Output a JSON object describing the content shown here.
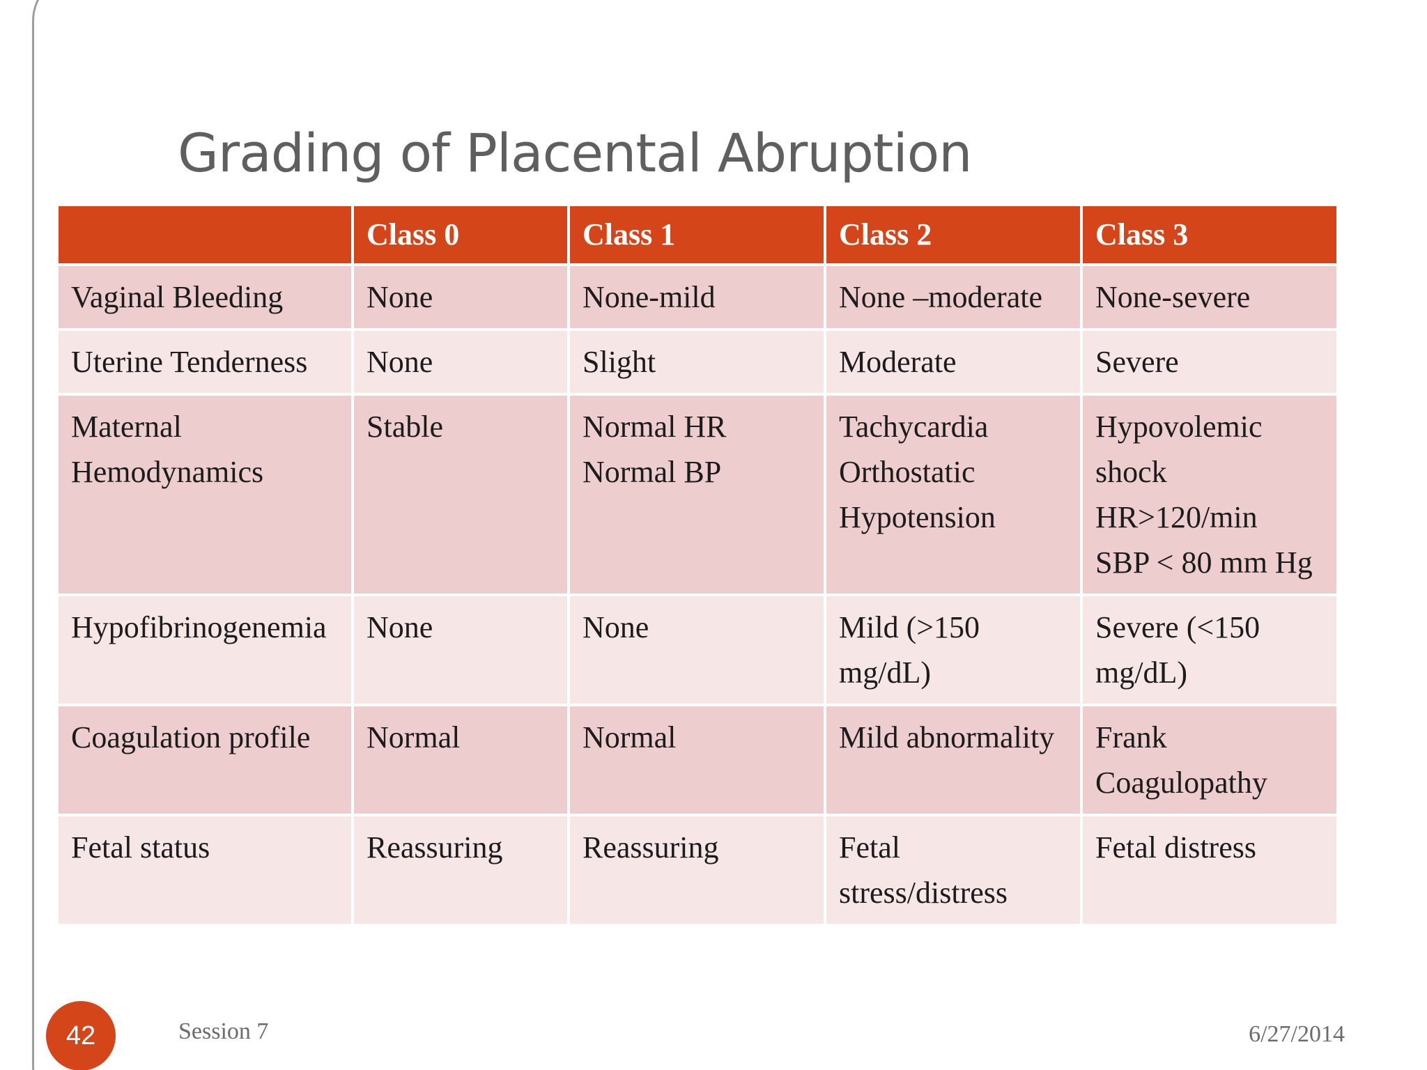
{
  "slide": {
    "title": "Grading of Placental Abruption",
    "page_number": "42",
    "footer_left": "Session 7",
    "footer_right": "6/27/2014",
    "accent_color": "#d4461a"
  },
  "table": {
    "headers": [
      "",
      "Class 0",
      "Class 1",
      "Class 2",
      "Class 3"
    ],
    "rows": [
      {
        "label": [
          "Vaginal Bleeding"
        ],
        "cells": [
          [
            "None"
          ],
          [
            "None-mild"
          ],
          [
            "None –moderate"
          ],
          [
            "None-severe"
          ]
        ]
      },
      {
        "label": [
          "Uterine Tenderness"
        ],
        "cells": [
          [
            "None"
          ],
          [
            "Slight"
          ],
          [
            "Moderate"
          ],
          [
            "Severe"
          ]
        ]
      },
      {
        "label": [
          "Maternal",
          "Hemodynamics"
        ],
        "cells": [
          [
            "Stable"
          ],
          [
            "Normal HR",
            "Normal BP"
          ],
          [
            "Tachycardia",
            "Orthostatic",
            "Hypotension"
          ],
          [
            "Hypovolemic",
            "shock",
            "HR>120/min",
            "SBP < 80 mm Hg"
          ]
        ]
      },
      {
        "label": [
          "Hypofibrinogenemia"
        ],
        "cells": [
          [
            "None"
          ],
          [
            "None"
          ],
          [
            "Mild (>150",
            "mg/dL)"
          ],
          [
            "Severe (<150",
            "mg/dL)"
          ]
        ]
      },
      {
        "label": [
          "Coagulation profile"
        ],
        "cells": [
          [
            "Normal"
          ],
          [
            "Normal"
          ],
          [
            "Mild abnormality"
          ],
          [
            "Frank",
            "Coagulopathy"
          ]
        ]
      },
      {
        "label": [
          "Fetal status"
        ],
        "cells": [
          [
            "Reassuring"
          ],
          [
            "Reassuring"
          ],
          [
            "Fetal",
            "stress/distress"
          ],
          [
            "Fetal distress"
          ]
        ]
      }
    ]
  }
}
